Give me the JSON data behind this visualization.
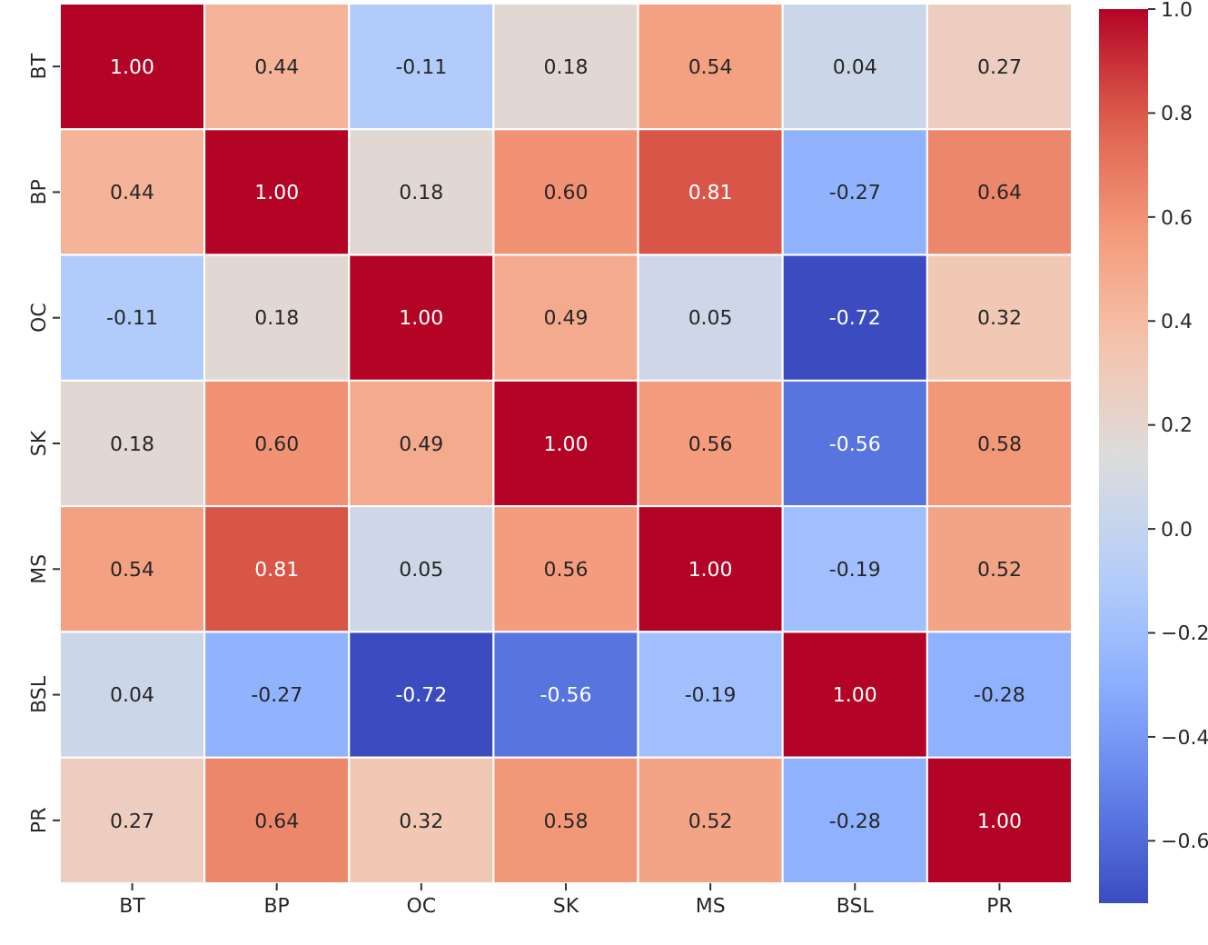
{
  "chart_data": {
    "type": "heatmap",
    "categories": [
      "BT",
      "BP",
      "OC",
      "SK",
      "MS",
      "BSL",
      "PR"
    ],
    "y_categories": [
      "BT",
      "BP",
      "OC",
      "SK",
      "MS",
      "BSL",
      "PR"
    ],
    "cells": [
      [
        1.0,
        0.44,
        -0.11,
        0.18,
        0.54,
        0.04,
        0.27
      ],
      [
        0.44,
        1.0,
        0.18,
        0.6,
        0.81,
        -0.27,
        0.64
      ],
      [
        -0.11,
        0.18,
        1.0,
        0.49,
        0.05,
        -0.72,
        0.32
      ],
      [
        0.18,
        0.6,
        0.49,
        1.0,
        0.56,
        -0.56,
        0.58
      ],
      [
        0.54,
        0.81,
        0.05,
        0.56,
        1.0,
        -0.19,
        0.52
      ],
      [
        0.04,
        -0.27,
        -0.72,
        -0.56,
        -0.19,
        1.0,
        -0.28
      ],
      [
        0.27,
        0.64,
        0.32,
        0.58,
        0.52,
        -0.28,
        1.0
      ]
    ],
    "cell_labels": [
      [
        "1.00",
        "0.44",
        "-0.11",
        "0.18",
        "0.54",
        "0.04",
        "0.27"
      ],
      [
        "0.44",
        "1.00",
        "0.18",
        "0.60",
        "0.81",
        "-0.27",
        "0.64"
      ],
      [
        "-0.11",
        "0.18",
        "1.00",
        "0.49",
        "0.05",
        "-0.72",
        "0.32"
      ],
      [
        "0.18",
        "0.60",
        "0.49",
        "1.00",
        "0.56",
        "-0.56",
        "0.58"
      ],
      [
        "0.54",
        "0.81",
        "0.05",
        "0.56",
        "1.00",
        "-0.19",
        "0.52"
      ],
      [
        "0.04",
        "-0.27",
        "-0.72",
        "-0.56",
        "-0.19",
        "1.00",
        "-0.28"
      ],
      [
        "0.27",
        "0.64",
        "0.32",
        "0.58",
        "0.52",
        "-0.28",
        "1.00"
      ]
    ],
    "data_labels": true,
    "clim": [
      -0.72,
      1.0
    ],
    "cticks": [
      {
        "value": -0.6,
        "label": "−0.6"
      },
      {
        "value": -0.4,
        "label": "−0.4"
      },
      {
        "value": -0.2,
        "label": "−0.2"
      },
      {
        "value": 0,
        "label": "0.0"
      },
      {
        "value": 0.2,
        "label": "0.2"
      },
      {
        "value": 0.4,
        "label": "0.4"
      },
      {
        "value": 0.6,
        "label": "0.6"
      },
      {
        "value": 0.8,
        "label": "0.8"
      },
      {
        "value": 1.0,
        "label": "1.0"
      }
    ]
  }
}
